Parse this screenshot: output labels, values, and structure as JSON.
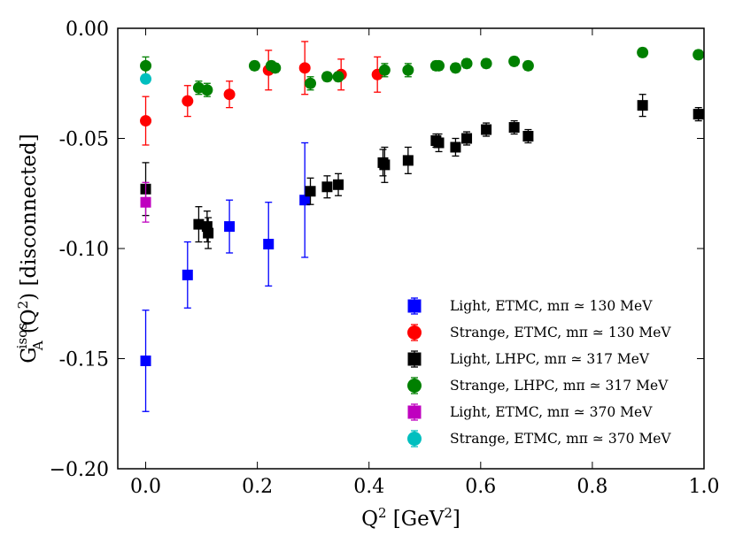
{
  "chart_data": {
    "type": "scatter",
    "xlabel": "Q² [GeV²]",
    "ylabel": "G_A^isos(Q²) [disconnected]",
    "xlim": [
      -0.05,
      1.0
    ],
    "ylim": [
      -0.2,
      0.0
    ],
    "xticks": [
      0.0,
      0.2,
      0.4,
      0.6,
      0.8,
      1.0
    ],
    "xtick_labels": [
      "0.0",
      "0.2",
      "0.4",
      "0.6",
      "0.8",
      "1.0"
    ],
    "yticks": [
      0.0,
      -0.05,
      -0.1,
      -0.15,
      -0.2
    ],
    "ytick_labels": [
      "0.00",
      "-0.05",
      "-0.10",
      "-0.15",
      "−0.20"
    ],
    "legend_position": "lower-right",
    "series": [
      {
        "name": "Light, ETMC, mπ ≃ 130 MeV",
        "color": "#0000ff",
        "marker": "square",
        "points": [
          {
            "x": 0.0,
            "y": -0.151,
            "err": 0.023
          },
          {
            "x": 0.075,
            "y": -0.112,
            "err": 0.015
          },
          {
            "x": 0.15,
            "y": -0.09,
            "err": 0.012
          },
          {
            "x": 0.22,
            "y": -0.098,
            "err": 0.019
          },
          {
            "x": 0.285,
            "y": -0.078,
            "err": 0.026
          }
        ]
      },
      {
        "name": "Strange, ETMC, mπ ≃ 130 MeV",
        "color": "#ff0000",
        "marker": "circle",
        "points": [
          {
            "x": 0.0,
            "y": -0.042,
            "err": 0.011
          },
          {
            "x": 0.075,
            "y": -0.033,
            "err": 0.007
          },
          {
            "x": 0.15,
            "y": -0.03,
            "err": 0.006
          },
          {
            "x": 0.22,
            "y": -0.019,
            "err": 0.009
          },
          {
            "x": 0.285,
            "y": -0.018,
            "err": 0.012
          },
          {
            "x": 0.35,
            "y": -0.021,
            "err": 0.007
          },
          {
            "x": 0.415,
            "y": -0.021,
            "err": 0.008
          }
        ]
      },
      {
        "name": "Light, LHPC, mπ ≃ 317 MeV",
        "color": "#000000",
        "marker": "square",
        "points": [
          {
            "x": 0.0,
            "y": -0.073,
            "err": 0.012
          },
          {
            "x": 0.095,
            "y": -0.089,
            "err": 0.008
          },
          {
            "x": 0.11,
            "y": -0.09,
            "err": 0.007
          },
          {
            "x": 0.112,
            "y": -0.093,
            "err": 0.007
          },
          {
            "x": 0.295,
            "y": -0.074,
            "err": 0.006
          },
          {
            "x": 0.325,
            "y": -0.072,
            "err": 0.005
          },
          {
            "x": 0.345,
            "y": -0.071,
            "err": 0.005
          },
          {
            "x": 0.425,
            "y": -0.061,
            "err": 0.006
          },
          {
            "x": 0.428,
            "y": -0.062,
            "err": 0.008
          },
          {
            "x": 0.47,
            "y": -0.06,
            "err": 0.006
          },
          {
            "x": 0.52,
            "y": -0.051,
            "err": 0.003
          },
          {
            "x": 0.525,
            "y": -0.052,
            "err": 0.004
          },
          {
            "x": 0.555,
            "y": -0.054,
            "err": 0.004
          },
          {
            "x": 0.575,
            "y": -0.05,
            "err": 0.003
          },
          {
            "x": 0.61,
            "y": -0.046,
            "err": 0.003
          },
          {
            "x": 0.66,
            "y": -0.045,
            "err": 0.003
          },
          {
            "x": 0.685,
            "y": -0.049,
            "err": 0.003
          },
          {
            "x": 0.89,
            "y": -0.035,
            "err": 0.005
          },
          {
            "x": 0.99,
            "y": -0.039,
            "err": 0.003
          }
        ]
      },
      {
        "name": "Strange, LHPC, mπ ≃ 317 MeV",
        "color": "#008000",
        "marker": "circle",
        "points": [
          {
            "x": 0.0,
            "y": -0.017,
            "err": 0.004
          },
          {
            "x": 0.095,
            "y": -0.027,
            "err": 0.003
          },
          {
            "x": 0.11,
            "y": -0.028,
            "err": 0.003
          },
          {
            "x": 0.195,
            "y": -0.017,
            "err": 0.002
          },
          {
            "x": 0.225,
            "y": -0.017,
            "err": 0.002
          },
          {
            "x": 0.232,
            "y": -0.018,
            "err": 0.002
          },
          {
            "x": 0.295,
            "y": -0.025,
            "err": 0.003
          },
          {
            "x": 0.325,
            "y": -0.022,
            "err": 0.002
          },
          {
            "x": 0.345,
            "y": -0.022,
            "err": 0.002
          },
          {
            "x": 0.428,
            "y": -0.019,
            "err": 0.003
          },
          {
            "x": 0.47,
            "y": -0.019,
            "err": 0.003
          },
          {
            "x": 0.52,
            "y": -0.017,
            "err": 0.002
          },
          {
            "x": 0.525,
            "y": -0.017,
            "err": 0.002
          },
          {
            "x": 0.555,
            "y": -0.018,
            "err": 0.002
          },
          {
            "x": 0.575,
            "y": -0.016,
            "err": 0.002
          },
          {
            "x": 0.61,
            "y": -0.016,
            "err": 0.002
          },
          {
            "x": 0.66,
            "y": -0.015,
            "err": 0.002
          },
          {
            "x": 0.685,
            "y": -0.017,
            "err": 0.002
          },
          {
            "x": 0.89,
            "y": -0.011,
            "err": 0.002
          },
          {
            "x": 0.99,
            "y": -0.012,
            "err": 0.002
          }
        ]
      },
      {
        "name": "Light, ETMC, mπ ≃ 370 MeV",
        "color": "#bf00bf",
        "marker": "square",
        "points": [
          {
            "x": 0.0,
            "y": -0.079,
            "err": 0.009
          }
        ]
      },
      {
        "name": "Strange, ETMC, mπ ≃ 370 MeV",
        "color": "#00bfbf",
        "marker": "circle",
        "points": [
          {
            "x": 0.0,
            "y": -0.023,
            "err": 0.0
          }
        ]
      }
    ]
  }
}
